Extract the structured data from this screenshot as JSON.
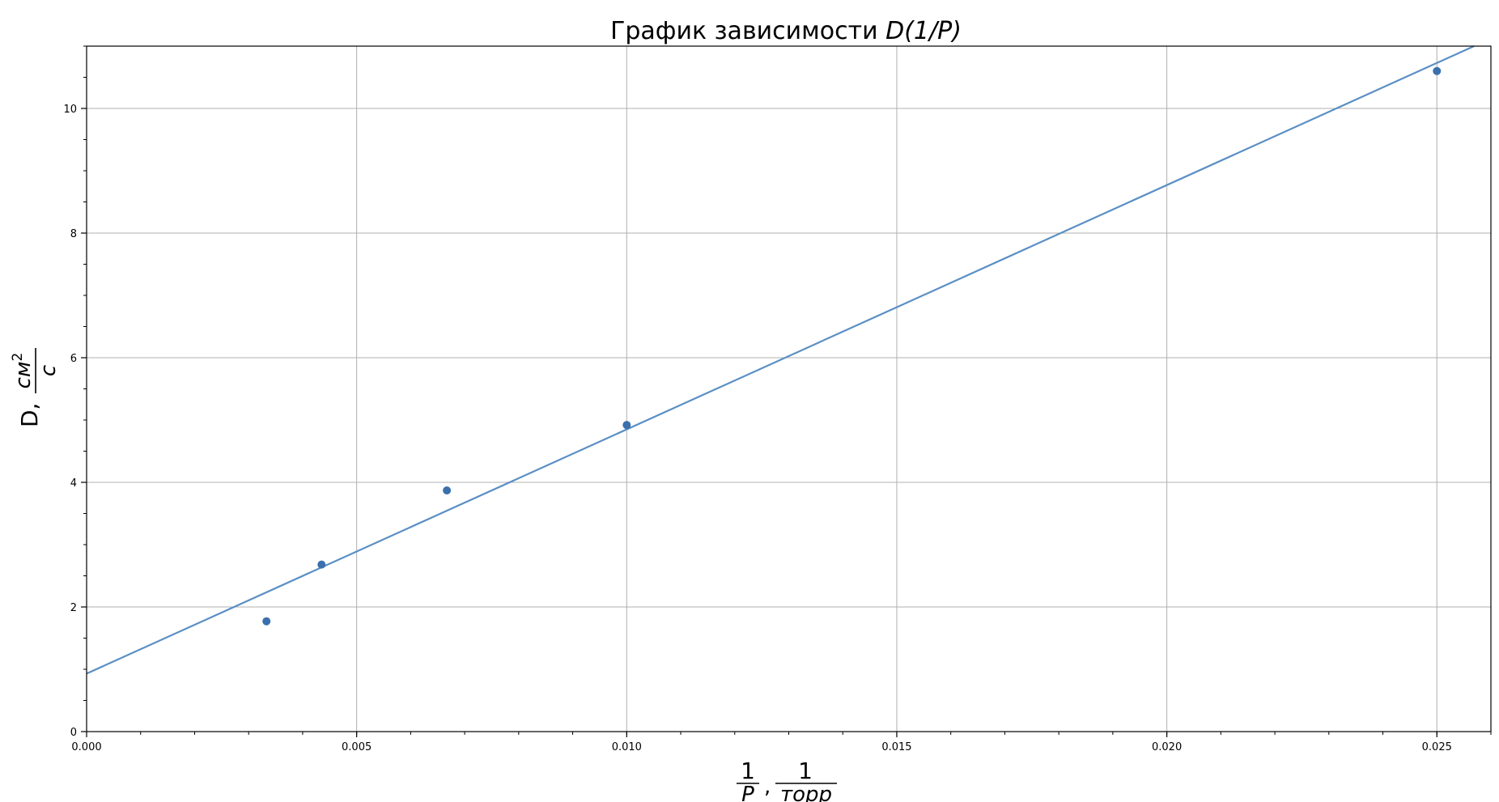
{
  "chart_data": {
    "type": "scatter",
    "title_prefix": "График зависимости ",
    "title_math": "D(1/P)",
    "xlabel": {
      "num1": "1",
      "den1": "P",
      "sep": ",",
      "num2": "1",
      "den2": "торр"
    },
    "ylabel": {
      "prefix": "D,",
      "num": "см",
      "num_sup": "2",
      "den": "с"
    },
    "xlim": [
      0.0,
      0.026
    ],
    "ylim": [
      0,
      11
    ],
    "grid": true,
    "legend": "none",
    "x_ticks": [
      0.0,
      0.005,
      0.01,
      0.015,
      0.02,
      0.025
    ],
    "x_tick_labels": [
      "0.000",
      "0.005",
      "0.010",
      "0.015",
      "0.020",
      "0.025"
    ],
    "y_ticks": [
      0,
      2,
      4,
      6,
      8,
      10
    ],
    "y_tick_labels": [
      "0",
      "2",
      "4",
      "6",
      "8",
      "10"
    ],
    "x_minor_step": 0.001,
    "y_minor_step": 0.5,
    "color": "#3a70ad",
    "line_color": "#5a8fc4",
    "series": [
      {
        "x": [
          0.00333,
          0.00435,
          0.00667,
          0.01,
          0.025
        ],
        "values": [
          1.77,
          2.68,
          3.87,
          4.92,
          10.6
        ]
      }
    ],
    "fit_line": {
      "intercept": 0.93,
      "slope": 392.0
    }
  }
}
